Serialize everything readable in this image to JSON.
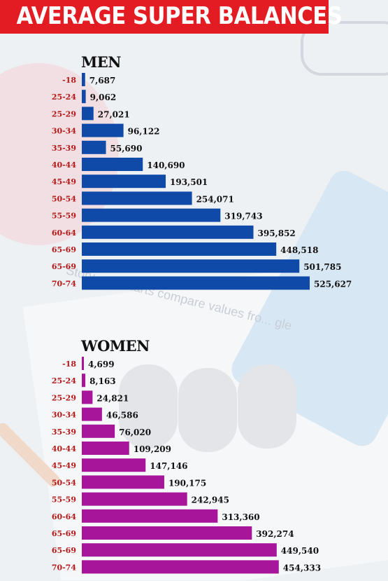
{
  "title": "AVERAGE SUPER BALANCES",
  "watermark": "Story... ut charts compare values fro... gle",
  "colors": {
    "banner": "#e31b23",
    "men": "#0f4aa8",
    "women": "#a7159b",
    "category": "#b31a1a"
  },
  "chart_data": [
    {
      "type": "bar",
      "orientation": "horizontal",
      "title": "MEN",
      "categories": [
        "-18",
        "25-24",
        "25-29",
        "30-34",
        "35-39",
        "40-44",
        "45-49",
        "50-54",
        "55-59",
        "60-64",
        "65-69",
        "65-69",
        "70-74"
      ],
      "values": [
        7687,
        9062,
        27021,
        96122,
        55690,
        140690,
        193501,
        254071,
        319743,
        395852,
        448518,
        501785,
        525627
      ],
      "value_labels": [
        "7,687",
        "9,062",
        "27,021",
        "96,122",
        "55,690",
        "140,690",
        "193,501",
        "254,071",
        "319,743",
        "395,852",
        "448,518",
        "501,785",
        "525,627"
      ],
      "color": "#0f4aa8"
    },
    {
      "type": "bar",
      "orientation": "horizontal",
      "title": "WOMEN",
      "categories": [
        "-18",
        "25-24",
        "25-29",
        "30-34",
        "35-39",
        "40-44",
        "45-49",
        "50-54",
        "55-59",
        "60-64",
        "65-69",
        "65-69",
        "70-74"
      ],
      "values": [
        4699,
        8163,
        24821,
        46586,
        76020,
        109209,
        147146,
        190175,
        242945,
        313360,
        392274,
        449540,
        454333
      ],
      "value_labels": [
        "4,699",
        "8,163",
        "24,821",
        "46,586",
        "76,020",
        "109,209",
        "147,146",
        "190,175",
        "242,945",
        "313,360",
        "392,274",
        "449,540",
        "454,333"
      ],
      "color": "#a7159b"
    }
  ]
}
